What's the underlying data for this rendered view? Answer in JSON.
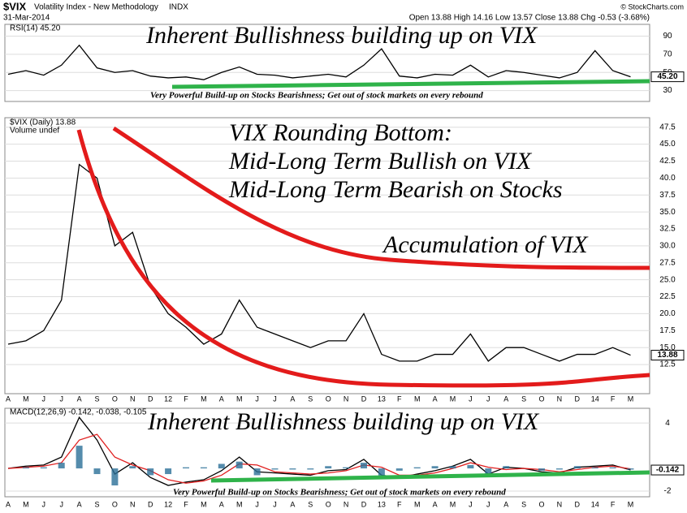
{
  "header": {
    "symbol": "$VIX",
    "name": "Volatility Index - New Methodology",
    "exchange": "INDX",
    "date": "31-Mar-2014",
    "quote": "Open 13.88 High 14.16 Low 13.57 Close 13.88 Chg -0.53 (-3.68%)",
    "source": "© StockCharts.com"
  },
  "chart_data": [
    {
      "type": "line",
      "label": "RSI(14) 45.20",
      "annotation": "Inherent Bullishness building up on VIX",
      "note": "Very Powerful Build-up on Stocks Bearishness; Get out of stock markets on every rebound",
      "values": [
        48,
        52,
        47,
        58,
        80,
        55,
        50,
        52,
        46,
        44,
        45,
        42,
        50,
        56,
        48,
        47,
        44,
        46,
        48,
        45,
        58,
        76,
        46,
        44,
        48,
        47,
        58,
        45,
        52,
        50,
        47,
        44,
        50,
        74,
        52,
        45.2
      ],
      "last_label": "45.20",
      "color": "#000000",
      "ylim": [
        18,
        103
      ],
      "yticks": [
        30,
        50,
        70,
        90
      ],
      "grid": true
    },
    {
      "type": "line",
      "label": "$VIX (Daily) 13.88",
      "sublabel": "Volume undef",
      "title": "VIX Rounding Bottom:",
      "subtitle": "Mid-Long Term Bullish on VIX",
      "subtitle2": "Mid-Long Term Bearish on Stocks",
      "annotation": "Accumulation of VIX",
      "categories": [
        "A",
        "M",
        "J",
        "J",
        "A",
        "S",
        "O",
        "N",
        "D",
        "12",
        "F",
        "M",
        "A",
        "M",
        "J",
        "J",
        "A",
        "S",
        "O",
        "N",
        "D",
        "13",
        "F",
        "M",
        "A",
        "M",
        "J",
        "J",
        "A",
        "S",
        "O",
        "N",
        "D",
        "14",
        "F",
        "M"
      ],
      "values": [
        15.5,
        16,
        17.5,
        22,
        42,
        40,
        30,
        32,
        24,
        20,
        18,
        15.5,
        17,
        22,
        18,
        17,
        16,
        15,
        16,
        16,
        20,
        14,
        13,
        13,
        14,
        14,
        17,
        13,
        15,
        15,
        14,
        13,
        14,
        14,
        15,
        13.88
      ],
      "color": "#000000",
      "ylim": [
        8.2,
        48.9
      ],
      "yticks": [
        {
          "value": 12.5,
          "label": "12.5"
        },
        {
          "value": 15,
          "label": "15.0"
        },
        {
          "value": 17.5,
          "label": "17.5"
        },
        {
          "value": 20,
          "label": "20.0"
        },
        {
          "value": 22.5,
          "label": "22.5"
        },
        {
          "value": 25,
          "label": "25.0"
        },
        {
          "value": 27.5,
          "label": "27.5"
        },
        {
          "value": 30,
          "label": "30.0"
        },
        {
          "value": 32.5,
          "label": "32.5"
        },
        {
          "value": 35,
          "label": "35.0"
        },
        {
          "value": 37.5,
          "label": "37.5"
        },
        {
          "value": 40,
          "label": "40.0"
        },
        {
          "value": 42.5,
          "label": "42.5"
        },
        {
          "value": 45,
          "label": "45.0"
        },
        {
          "value": 47.5,
          "label": "47.5"
        }
      ],
      "grid": true
    },
    {
      "type": "line",
      "label": "MACD(12,26,9) -0.142, -0.038, -0.105",
      "annotation": "Inherent Bullishness building up on VIX",
      "note": "Very Powerful Build-up on Stocks Bearishness; Get out of stock markets on every rebound",
      "categories": [
        "A",
        "M",
        "J",
        "J",
        "A",
        "S",
        "O",
        "N",
        "D",
        "12",
        "F",
        "M",
        "A",
        "M",
        "J",
        "J",
        "A",
        "S",
        "O",
        "N",
        "D",
        "13",
        "F",
        "M",
        "A",
        "M",
        "J",
        "J",
        "A",
        "S",
        "O",
        "N",
        "D",
        "14",
        "F",
        "M"
      ],
      "series": [
        {
          "color": "#000000",
          "values": [
            0,
            0.2,
            0.3,
            1,
            4.5,
            2.5,
            -0.5,
            0.5,
            -0.8,
            -1.5,
            -1.2,
            -1,
            -0.2,
            1,
            -0.3,
            -0.4,
            -0.5,
            -0.6,
            -0.2,
            -0.1,
            0.8,
            -0.6,
            -0.8,
            -0.5,
            -0.2,
            0.2,
            0.8,
            -0.5,
            0.1,
            0,
            -0.3,
            -0.4,
            0.1,
            0.2,
            0.3,
            -0.142
          ]
        },
        {
          "color": "#e02020",
          "values": [
            0,
            0.1,
            0.2,
            0.5,
            2.5,
            3,
            1,
            0.3,
            -0.2,
            -1,
            -1.3,
            -1.1,
            -0.6,
            0.4,
            0.3,
            -0.3,
            -0.4,
            -0.5,
            -0.4,
            -0.2,
            0.3,
            0.1,
            -0.6,
            -0.6,
            -0.4,
            0,
            0.5,
            0.1,
            -0.1,
            0,
            -0.1,
            -0.3,
            -0.1,
            0.1,
            0.2,
            -0.038
          ]
        },
        {
          "color": "#2a6f97",
          "type": "bar",
          "values": [
            0,
            0.1,
            0.1,
            0.5,
            2,
            -0.5,
            -1.5,
            0.2,
            -0.6,
            -0.5,
            0.1,
            0.1,
            0.4,
            0.6,
            -0.6,
            -0.1,
            -0.1,
            -0.1,
            0.2,
            0.1,
            0.5,
            -0.7,
            -0.2,
            0.1,
            0.2,
            0.2,
            0.3,
            -0.6,
            0.2,
            0,
            -0.2,
            -0.1,
            0.2,
            0.1,
            0.1,
            -0.105
          ]
        }
      ],
      "ylim": [
        -2.5,
        5.3
      ],
      "yticks": [
        -2,
        4
      ],
      "grid": true
    }
  ]
}
